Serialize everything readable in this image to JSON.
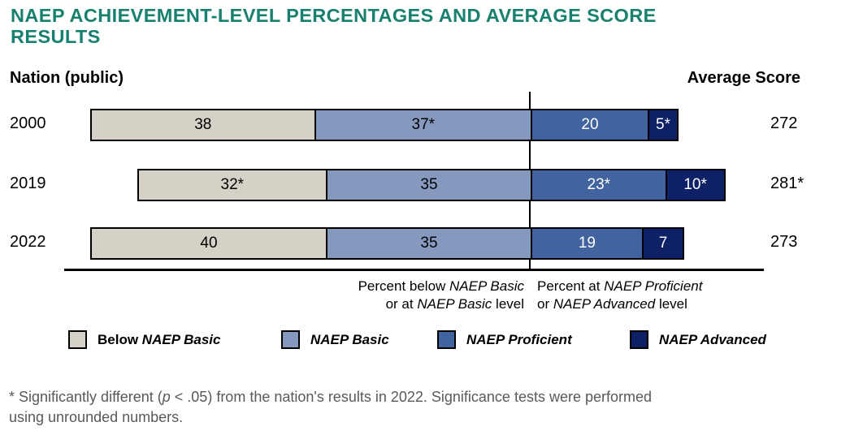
{
  "title": {
    "full": "NAEP ACHIEVEMENT-LEVEL PERCENTAGES AND AVERAGE SCORE RESULTS",
    "line1": "NAEP ACHIEVEMENT-LEVEL PERCENTAGES AND AVERAGE SCORE",
    "line2": "RESULTS",
    "color": "#17806E"
  },
  "header": {
    "left_label": "Nation (public)",
    "right_label": "Average Score"
  },
  "chart_data": {
    "type": "bar",
    "subtype": "horizontal-stacked-diverging",
    "title": "NAEP ACHIEVEMENT-LEVEL PERCENTAGES AND AVERAGE SCORE RESULTS",
    "group_label": "Nation (public)",
    "categories": [
      "2000",
      "2019",
      "2022"
    ],
    "series": [
      {
        "name": "Below NAEP Basic",
        "values": [
          38,
          32,
          40
        ],
        "color": "#D5D1C6",
        "text_color": "#000000"
      },
      {
        "name": "NAEP Basic",
        "values": [
          37,
          35,
          35
        ],
        "color": "#8599BF",
        "text_color": "#000000"
      },
      {
        "name": "NAEP Proficient",
        "values": [
          20,
          23,
          19
        ],
        "color": "#41639E",
        "text_color": "#FFFFFF"
      },
      {
        "name": "NAEP Advanced",
        "values": [
          5,
          10,
          7
        ],
        "color": "#0E2167",
        "text_color": "#FFFFFF"
      }
    ],
    "rows": [
      {
        "year": "2000",
        "segments": [
          {
            "value": 38,
            "label": "38"
          },
          {
            "value": 37,
            "label": "37*"
          },
          {
            "value": 20,
            "label": "20"
          },
          {
            "value": 5,
            "label": "5*"
          }
        ],
        "score": "272"
      },
      {
        "year": "2019",
        "segments": [
          {
            "value": 32,
            "label": "32*"
          },
          {
            "value": 35,
            "label": "35"
          },
          {
            "value": 23,
            "label": "23*"
          },
          {
            "value": 10,
            "label": "10*"
          }
        ],
        "score": "281*"
      },
      {
        "year": "2022",
        "segments": [
          {
            "value": 40,
            "label": "40"
          },
          {
            "value": 35,
            "label": "35"
          },
          {
            "value": 19,
            "label": "19"
          },
          {
            "value": 7,
            "label": "7"
          }
        ],
        "score": "273"
      }
    ],
    "average_score_header": "Average Score",
    "alignment_note": "bars aligned on vertical divider at the NAEP Basic / NAEP Proficient boundary",
    "x_axis_captions": {
      "left": "Percent below NAEP Basic or at NAEP Basic level",
      "right": "Percent at NAEP Proficient or NAEP Advanced level"
    },
    "legend_position": "bottom"
  },
  "captions": {
    "left": {
      "l1_pre": "Percent below ",
      "l1_em": "NAEP Basic",
      "l2_pre": "or at ",
      "l2_em": "NAEP Basic",
      "l2_post": " level"
    },
    "right": {
      "l1_pre": "Percent at ",
      "l1_em": "NAEP Proficient",
      "l2_pre": "or ",
      "l2_em": "NAEP Advanced",
      "l2_post": " level"
    }
  },
  "legend": {
    "items": [
      {
        "prefix": "Below ",
        "name": "NAEP Basic",
        "color": "#D5D1C6"
      },
      {
        "prefix": "",
        "name": "NAEP Basic",
        "color": "#8599BF"
      },
      {
        "prefix": "",
        "name": "NAEP Proficient",
        "color": "#41639E"
      },
      {
        "prefix": "",
        "name": "NAEP Advanced",
        "color": "#0E2167"
      }
    ]
  },
  "footnote": {
    "line1_pre": "*  Significantly different (",
    "line1_em": "p",
    "line1_post": " < .05) from the nation's results in 2022. Significance tests were performed",
    "line2": "using unrounded numbers.",
    "color": "#595959"
  }
}
